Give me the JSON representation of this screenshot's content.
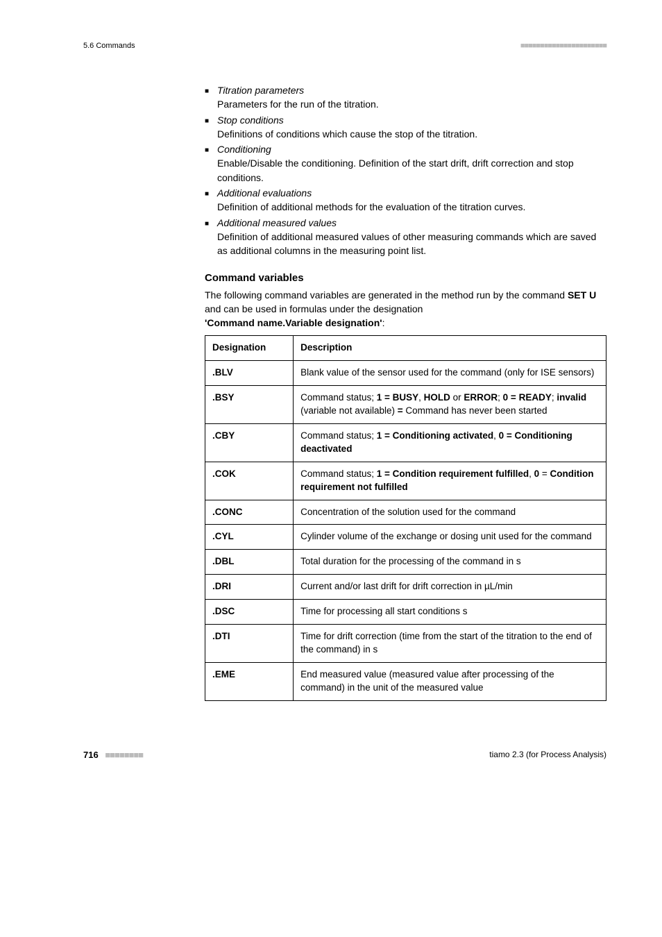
{
  "header": {
    "left": "5.6 Commands"
  },
  "bullets": [
    {
      "title": "Titration parameters",
      "desc": "Parameters for the run of the titration."
    },
    {
      "title": "Stop conditions",
      "desc": "Definitions of conditions which cause the stop of the titration."
    },
    {
      "title": "Conditioning",
      "desc": "Enable/Disable the conditioning. Definition of the start drift, drift correction and stop conditions."
    },
    {
      "title": "Additional evaluations",
      "desc": "Definition of additional methods for the evaluation of the titration curves."
    },
    {
      "title": "Additional measured values",
      "desc": "Definition of additional measured values of other measuring commands which are saved as additional columns in the measuring point list."
    }
  ],
  "section": {
    "heading": "Command variables",
    "intro_pre": "The following command variables are generated in the method run by the command ",
    "intro_bold1": "SET U",
    "intro_mid": " and can be used in formulas under the designation ",
    "intro_bold2": "'Command name.Variable designation'",
    "intro_post": ":"
  },
  "table": {
    "columns": [
      "Designation",
      "Description"
    ],
    "rows": [
      {
        "des": ".BLV",
        "desc_html": "Blank value of the sensor used for the command (only for ISE sensors)"
      },
      {
        "des": ".BSY",
        "desc_html": "Command status; <b>1 = BUSY</b>, <b>HOLD</b> or <b>ERROR</b>; <b>0 = READY</b>; <b>invalid</b> (variable not available) <b>=</b> Command has never been started"
      },
      {
        "des": ".CBY",
        "desc_html": "Command status; <b>1 = Conditioning activated</b>, <b>0 = Conditioning deactivated</b>"
      },
      {
        "des": ".COK",
        "desc_html": "Command status; <b>1 = Condition requirement fulfilled</b>, <b>0</b> = <b>Condition requirement not fulfilled</b>"
      },
      {
        "des": ".CONC",
        "desc_html": "Concentration of the solution used for the command"
      },
      {
        "des": ".CYL",
        "desc_html": "Cylinder volume of the exchange or dosing unit used for the command"
      },
      {
        "des": ".DBL",
        "desc_html": "Total duration for the processing of the command in s"
      },
      {
        "des": ".DRI",
        "desc_html": "Current and/or last drift for drift correction in µL/min"
      },
      {
        "des": ".DSC",
        "desc_html": "Time for processing all start conditions s"
      },
      {
        "des": ".DTI",
        "desc_html": "Time for drift correction (time from the start of the titration to the end of the command) in s"
      },
      {
        "des": ".EME",
        "desc_html": "End measured value (measured value after processing of the command) in the unit of the measured value"
      }
    ]
  },
  "footer": {
    "page": "716",
    "right": "tiamo 2.3 (for Process Analysis)"
  }
}
